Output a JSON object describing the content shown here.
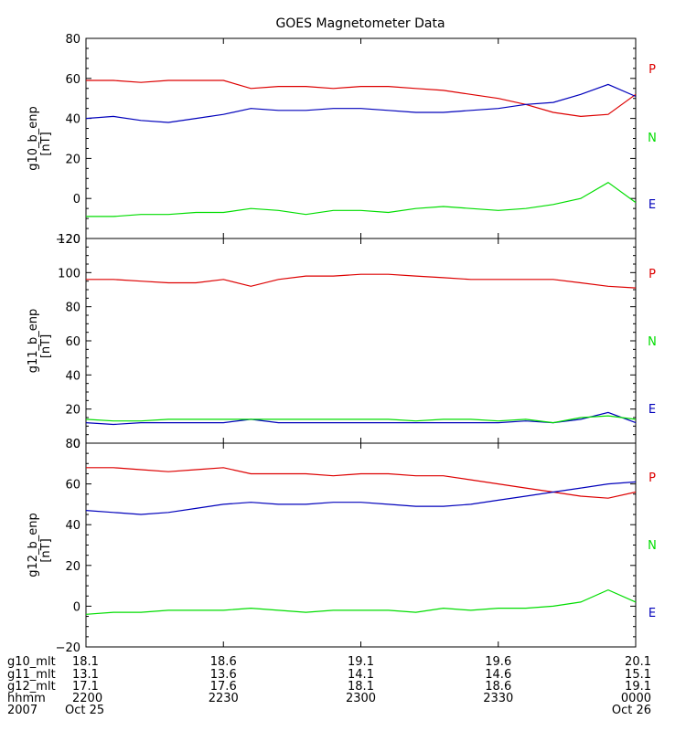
{
  "chart_data": {
    "type": "line",
    "title": "GOES Magnetometer Data",
    "x": {
      "ticks": [
        "2200",
        "2230",
        "2300",
        "2330",
        "0000"
      ],
      "start": "2200",
      "end": "0000",
      "row_labels": [
        "g10_mlt",
        "g11_mlt",
        "g12_mlt",
        "hhmm",
        "2007"
      ],
      "rows": [
        [
          "18.1",
          "18.6",
          "19.1",
          "19.6",
          "20.1"
        ],
        [
          "13.1",
          "13.6",
          "14.1",
          "14.6",
          "15.1"
        ],
        [
          "17.1",
          "17.6",
          "18.1",
          "18.6",
          "19.1"
        ],
        [
          "2200",
          "2230",
          "2300",
          "2330",
          "0000"
        ]
      ],
      "date_start": "Oct 25",
      "date_end": "Oct 26"
    },
    "panels": [
      {
        "ylabel": "g10_b_enp",
        "yunit": "[nT]",
        "ylim": [
          -20,
          80
        ],
        "yticks": [
          -20,
          0,
          20,
          40,
          60,
          80
        ],
        "legend": [
          "P",
          "N",
          "E"
        ],
        "series": [
          {
            "name": "P",
            "color": "#dd0000",
            "x": [
              0,
              6,
              12,
              18,
              24,
              30,
              36,
              42,
              48,
              54,
              60,
              66,
              72,
              78,
              84,
              90,
              96,
              102,
              108,
              114,
              120
            ],
            "values": [
              59,
              59,
              58,
              59,
              59,
              59,
              55,
              56,
              56,
              55,
              56,
              56,
              55,
              54,
              52,
              50,
              47,
              43,
              41,
              42,
              52
            ]
          },
          {
            "name": "E",
            "color": "#0000bb",
            "x": [
              0,
              6,
              12,
              18,
              24,
              30,
              36,
              42,
              48,
              54,
              60,
              66,
              72,
              78,
              84,
              90,
              96,
              102,
              108,
              114,
              120
            ],
            "values": [
              40,
              41,
              39,
              38,
              40,
              42,
              45,
              44,
              44,
              45,
              45,
              44,
              43,
              43,
              44,
              45,
              47,
              48,
              52,
              57,
              51
            ]
          },
          {
            "name": "N",
            "color": "#00dd00",
            "x": [
              0,
              6,
              12,
              18,
              24,
              30,
              36,
              42,
              48,
              54,
              60,
              66,
              72,
              78,
              84,
              90,
              96,
              102,
              108,
              114,
              120
            ],
            "values": [
              -9,
              -9,
              -8,
              -8,
              -7,
              -7,
              -5,
              -6,
              -8,
              -6,
              -6,
              -7,
              -5,
              -4,
              -5,
              -6,
              -5,
              -3,
              0,
              8,
              -2
            ]
          }
        ]
      },
      {
        "ylabel": "g11_b_enp",
        "yunit": "[nT]",
        "ylim": [
          0,
          120
        ],
        "yticks": [
          0,
          20,
          40,
          60,
          80,
          100,
          120
        ],
        "legend": [
          "P",
          "N",
          "E"
        ],
        "series": [
          {
            "name": "P",
            "color": "#dd0000",
            "x": [
              0,
              6,
              12,
              18,
              24,
              30,
              36,
              42,
              48,
              54,
              60,
              66,
              72,
              78,
              84,
              90,
              96,
              102,
              108,
              114,
              120
            ],
            "values": [
              96,
              96,
              95,
              94,
              94,
              96,
              92,
              96,
              98,
              98,
              99,
              99,
              98,
              97,
              96,
              96,
              96,
              96,
              94,
              92,
              91
            ]
          },
          {
            "name": "E",
            "color": "#0000bb",
            "x": [
              0,
              6,
              12,
              18,
              24,
              30,
              36,
              42,
              48,
              54,
              60,
              66,
              72,
              78,
              84,
              90,
              96,
              102,
              108,
              114,
              120
            ],
            "values": [
              12,
              11,
              12,
              12,
              12,
              12,
              14,
              12,
              12,
              12,
              12,
              12,
              12,
              12,
              12,
              12,
              13,
              12,
              14,
              18,
              12
            ]
          },
          {
            "name": "N",
            "color": "#00dd00",
            "x": [
              0,
              6,
              12,
              18,
              24,
              30,
              36,
              42,
              48,
              54,
              60,
              66,
              72,
              78,
              84,
              90,
              96,
              102,
              108,
              114,
              120
            ],
            "values": [
              14,
              13,
              13,
              14,
              14,
              14,
              14,
              14,
              14,
              14,
              14,
              14,
              13,
              14,
              14,
              13,
              14,
              12,
              15,
              16,
              14
            ]
          }
        ]
      },
      {
        "ylabel": "g12_b_enp",
        "yunit": "[nT]",
        "ylim": [
          -20,
          80
        ],
        "yticks": [
          -20,
          0,
          20,
          40,
          60,
          80
        ],
        "legend": [
          "P",
          "N",
          "E"
        ],
        "series": [
          {
            "name": "P",
            "color": "#dd0000",
            "x": [
              0,
              6,
              12,
              18,
              24,
              30,
              36,
              42,
              48,
              54,
              60,
              66,
              72,
              78,
              84,
              90,
              96,
              102,
              108,
              114,
              120
            ],
            "values": [
              68,
              68,
              67,
              66,
              67,
              68,
              65,
              65,
              65,
              64,
              65,
              65,
              64,
              64,
              62,
              60,
              58,
              56,
              54,
              53,
              56
            ]
          },
          {
            "name": "E",
            "color": "#0000bb",
            "x": [
              0,
              6,
              12,
              18,
              24,
              30,
              36,
              42,
              48,
              54,
              60,
              66,
              72,
              78,
              84,
              90,
              96,
              102,
              108,
              114,
              120
            ],
            "values": [
              47,
              46,
              45,
              46,
              48,
              50,
              51,
              50,
              50,
              51,
              51,
              50,
              49,
              49,
              50,
              52,
              54,
              56,
              58,
              60,
              61
            ]
          },
          {
            "name": "N",
            "color": "#00dd00",
            "x": [
              0,
              6,
              12,
              18,
              24,
              30,
              36,
              42,
              48,
              54,
              60,
              66,
              72,
              78,
              84,
              90,
              96,
              102,
              108,
              114,
              120
            ],
            "values": [
              -4,
              -3,
              -3,
              -2,
              -2,
              -2,
              -1,
              -2,
              -3,
              -2,
              -2,
              -2,
              -3,
              -1,
              -2,
              -1,
              -1,
              0,
              2,
              8,
              2
            ]
          }
        ]
      }
    ]
  }
}
